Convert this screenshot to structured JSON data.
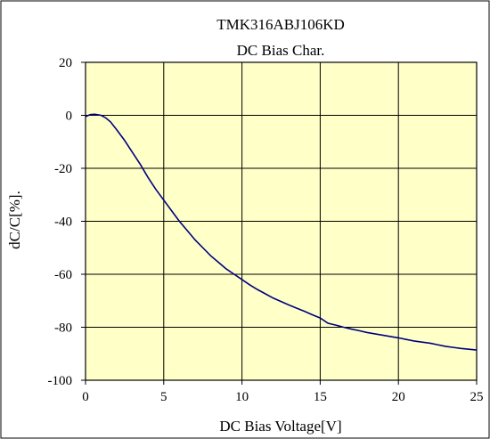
{
  "chart_data": {
    "type": "line",
    "title": "TMK316ABJ106KD",
    "subtitle": "DC Bias Char.",
    "xlabel": "DC Bias Voltage[V]",
    "ylabel": "dC/C[%].",
    "xlim": [
      0,
      25
    ],
    "ylim": [
      -100,
      20
    ],
    "x_ticks": [
      0,
      5,
      10,
      15,
      20,
      25
    ],
    "y_ticks": [
      20,
      0,
      -20,
      -40,
      -60,
      -80,
      -100
    ],
    "grid": true,
    "plot_background": "#ffffc8",
    "line_color": "#00007f",
    "series": [
      {
        "x": [
          0,
          0.3,
          0.6,
          1.0,
          1.3,
          1.6,
          2.0,
          2.5,
          3.0,
          3.5,
          4.0,
          4.5,
          5.0,
          5.5,
          6.0,
          6.5,
          7.0,
          7.5,
          8.0,
          8.5,
          9.0,
          9.5,
          10.0,
          10.5,
          11.0,
          11.5,
          12.0,
          12.5,
          13.0,
          13.5,
          14.0,
          14.5,
          15.0,
          15.5,
          16.0,
          16.5,
          17.0,
          17.5,
          18.0,
          18.5,
          19.0,
          19.5,
          20.0,
          20.5,
          21.0,
          21.5,
          22.0,
          22.5,
          23.0,
          23.5,
          24.0,
          24.5,
          25.0
        ],
        "y": [
          -0.5,
          0.3,
          0.4,
          0.0,
          -1.0,
          -2.5,
          -5.5,
          -9.5,
          -14.0,
          -18.5,
          -23.5,
          -28.0,
          -32.0,
          -36.0,
          -40.0,
          -43.5,
          -47.0,
          -50.0,
          -53.0,
          -55.5,
          -58.0,
          -60.0,
          -62.0,
          -64.0,
          -65.8,
          -67.4,
          -69.0,
          -70.3,
          -71.6,
          -72.8,
          -74.0,
          -75.3,
          -76.5,
          -78.5,
          -79.2,
          -80.0,
          -80.7,
          -81.3,
          -82.0,
          -82.5,
          -83.0,
          -83.5,
          -84.0,
          -84.6,
          -85.2,
          -85.6,
          -86.0,
          -86.6,
          -87.2,
          -87.6,
          -88.0,
          -88.3,
          -88.6
        ]
      }
    ]
  }
}
